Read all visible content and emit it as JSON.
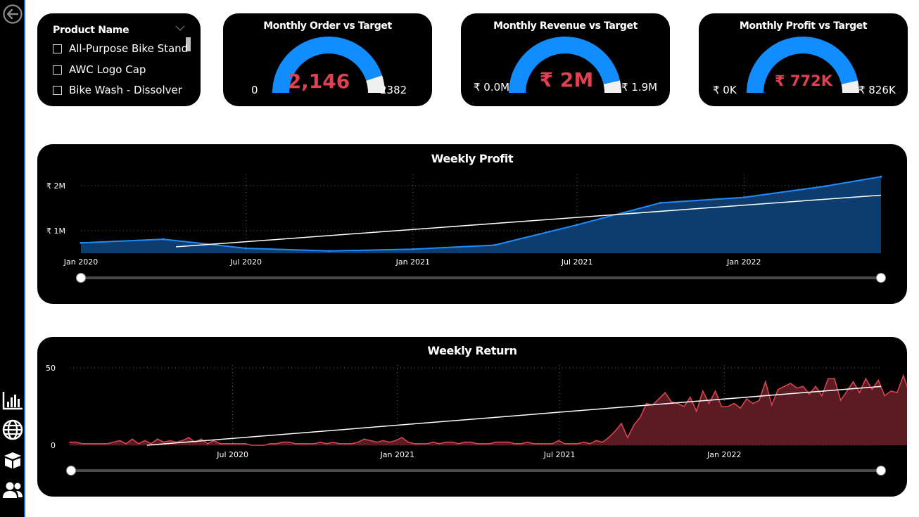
{
  "sidebar": {
    "items": [
      {
        "name": "back-arrow-icon"
      },
      {
        "name": "bar-chart-icon"
      },
      {
        "name": "globe-icon"
      },
      {
        "name": "box-icon"
      },
      {
        "name": "users-icon"
      }
    ]
  },
  "slicer": {
    "title": "Product Name",
    "items": [
      {
        "label": "All-Purpose Bike Stand"
      },
      {
        "label": "AWC Logo Cap"
      },
      {
        "label": "Bike Wash - Dissolver"
      }
    ]
  },
  "gauges": [
    {
      "title": "Monthly Order vs Target",
      "value": "2,146",
      "min": "0",
      "max": "2382",
      "fraction": 0.9
    },
    {
      "title": "Monthly Revenue vs Target",
      "value": "₹ 2M",
      "min": "₹ 0.0M",
      "max": "₹ 1.9M",
      "fraction": 0.93
    },
    {
      "title": "Monthly Profit vs Target",
      "value": "₹ 772K",
      "min": "₹ 0K",
      "max": "₹ 826K",
      "fraction": 0.93
    }
  ],
  "colors": {
    "gauge_fill": "#118dff",
    "gauge_track": "#f0f0f0",
    "gauge_value": "#e04150",
    "profit_line": "#1e8cff",
    "profit_area": "#0d3c6e",
    "return_line": "#d9434f",
    "return_area": "#5a1c22",
    "trend_line": "#ffffff"
  },
  "chart_data": [
    {
      "type": "area",
      "title": "Weekly Profit",
      "x_ticks": [
        "Jan 2020",
        "Jul 2020",
        "Jan 2021",
        "Jul 2021",
        "Jan 2022"
      ],
      "y_ticks": [
        "₹ 1M",
        "₹ 2M"
      ],
      "y_tick_values": [
        1.0,
        2.0
      ],
      "ylim": [
        0.5,
        2.25
      ],
      "x_range": [
        "2020-01-01",
        "2022-06-01"
      ],
      "series": [
        {
          "x": [
            "2020-01-01",
            "2020-04-01",
            "2020-07-01",
            "2020-10-01",
            "2021-01-01",
            "2021-04-01",
            "2021-07-01",
            "2021-10-01",
            "2022-01-01",
            "2022-04-01",
            "2022-06-01"
          ],
          "values": [
            0.73,
            0.81,
            0.61,
            0.55,
            0.59,
            0.68,
            1.13,
            1.62,
            1.74,
            1.99,
            2.2
          ]
        }
      ],
      "trend": {
        "start": 0.5,
        "end": 1.79
      },
      "grid": true
    },
    {
      "type": "area",
      "title": "Weekly Return",
      "x_ticks": [
        "Jul 2020",
        "Jan 2021",
        "Jul 2021",
        "Jan 2022"
      ],
      "y_ticks": [
        "0",
        "50"
      ],
      "y_tick_values": [
        0,
        50
      ],
      "ylim": [
        0,
        50
      ],
      "x_range": [
        "2020-01-01",
        "2022-06-25"
      ],
      "series": [
        {
          "values": [
            2,
            2,
            1,
            1,
            1,
            1,
            1,
            2,
            3,
            1,
            4,
            1,
            3,
            1,
            4,
            2,
            3,
            2,
            3,
            5,
            2,
            4,
            1,
            3,
            1,
            1,
            1,
            1,
            1,
            0,
            0,
            0,
            1,
            1,
            2,
            2,
            1,
            1,
            1,
            1,
            2,
            1,
            2,
            1,
            1,
            1,
            2,
            4,
            3,
            2,
            3,
            2,
            3,
            5,
            2,
            1,
            1,
            1,
            2,
            1,
            2,
            2,
            1,
            2,
            2,
            1,
            1,
            1,
            2,
            2,
            2,
            1,
            1,
            2,
            1,
            1,
            1,
            1,
            3,
            1,
            1,
            1,
            2,
            1,
            3,
            2,
            5,
            9,
            14,
            5,
            13,
            18,
            27,
            26,
            30,
            34,
            28,
            27,
            25,
            31,
            22,
            35,
            27,
            35,
            25,
            25,
            27,
            24,
            30,
            27,
            29,
            41,
            26,
            36,
            38,
            40,
            37,
            38,
            33,
            38,
            32,
            43,
            43,
            29,
            35,
            41,
            34,
            43,
            36,
            42,
            32,
            35,
            34,
            45,
            33,
            35,
            33,
            41,
            41,
            45,
            39,
            43,
            28
          ],
          "start": "2020-01-01",
          "interval_days": 7
        }
      ],
      "trend": {
        "start": -4,
        "end": 38
      },
      "grid": true
    }
  ]
}
